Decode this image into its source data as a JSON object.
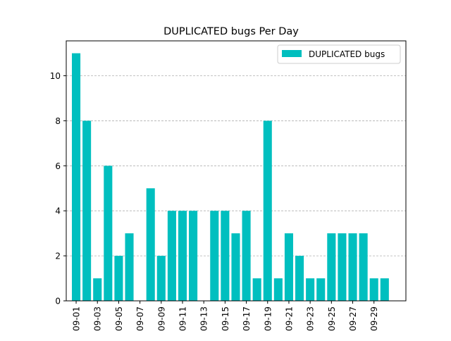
{
  "chart_data": {
    "type": "bar",
    "title": "DUPLICATED bugs Per Day",
    "xlabel": "",
    "ylabel": "",
    "categories": [
      "09-01",
      "09-02",
      "09-03",
      "09-04",
      "09-05",
      "09-06",
      "09-07",
      "09-08",
      "09-09",
      "09-10",
      "09-11",
      "09-12",
      "09-13",
      "09-14",
      "09-15",
      "09-16",
      "09-17",
      "09-18",
      "09-19",
      "09-20",
      "09-21",
      "09-22",
      "09-23",
      "09-24",
      "09-25",
      "09-26",
      "09-27",
      "09-28",
      "09-29",
      "09-30"
    ],
    "series": [
      {
        "name": "DUPLICATED bugs",
        "color": "#00bfbf",
        "values": [
          11,
          8,
          1,
          6,
          2,
          3,
          0,
          5,
          2,
          4,
          4,
          4,
          0,
          4,
          4,
          3,
          4,
          1,
          8,
          1,
          3,
          2,
          1,
          1,
          3,
          3,
          3,
          3,
          1,
          1
        ]
      }
    ],
    "xtick_labels": [
      "09-01",
      "09-03",
      "09-05",
      "09-07",
      "09-09",
      "09-11",
      "09-13",
      "09-15",
      "09-17",
      "09-19",
      "09-21",
      "09-23",
      "09-25",
      "09-27",
      "09-29"
    ],
    "yticks": [
      0,
      2,
      4,
      6,
      8,
      10
    ],
    "ylim": [
      0,
      11.55
    ],
    "grid": "y-dashed",
    "legend": "top-right"
  }
}
